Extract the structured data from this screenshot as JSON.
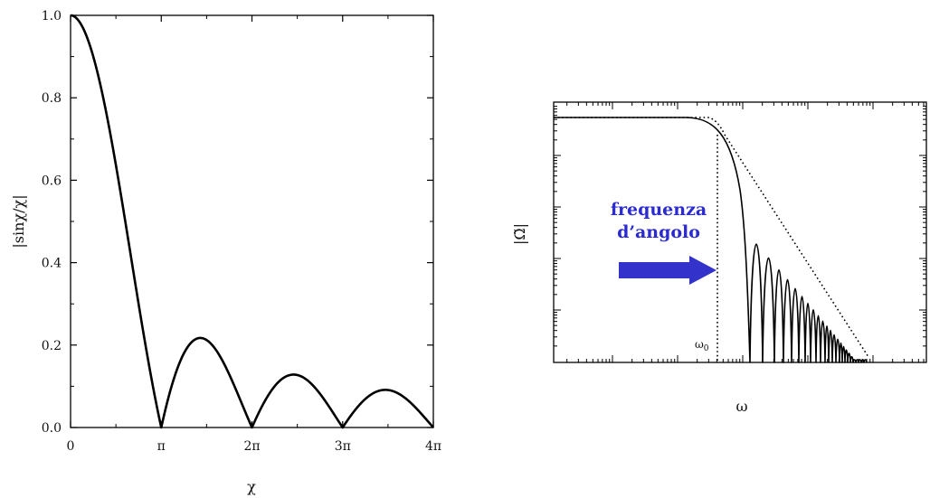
{
  "chart_data": [
    {
      "type": "line",
      "xlabel": "χ",
      "ylabel": "|sinχ/χ|",
      "xlim": [
        0,
        12.566
      ],
      "ylim": [
        0,
        1
      ],
      "x_tick_labels": [
        "0",
        "π",
        "2π",
        "3π",
        "4π"
      ],
      "x_tick_values": [
        0,
        3.1416,
        6.2832,
        9.4248,
        12.5664
      ],
      "y_tick_labels": [
        "0.0",
        "0.2",
        "0.4",
        "0.6",
        "0.8",
        "1.0"
      ],
      "y_tick_values": [
        0,
        0.2,
        0.4,
        0.6,
        0.8,
        1.0
      ],
      "grid": false,
      "series": [
        {
          "function": "|sin(x)/x|",
          "x": [
            0,
            0.5,
            1.0,
            1.5,
            2.0,
            2.5,
            3.1416,
            3.5,
            4.0,
            4.4934,
            5.0,
            5.5,
            6.2832,
            7.0,
            7.7253,
            8.5,
            9.4248,
            10.0,
            10.9041,
            11.5,
            12.5664
          ],
          "values": [
            1.0,
            0.959,
            0.841,
            0.665,
            0.455,
            0.239,
            0.0,
            0.1,
            0.189,
            0.217,
            0.192,
            0.128,
            0.0,
            0.094,
            0.128,
            0.094,
            0.0,
            0.054,
            0.091,
            0.076,
            0.0
          ]
        }
      ]
    },
    {
      "type": "line",
      "xlabel": "ω",
      "ylabel": "|Ω̃|",
      "x_scale": "log",
      "y_scale": "log",
      "grid": false,
      "corner_label": "ω",
      "corner_label_sub": "0",
      "annotation": {
        "text_lines": [
          "frequenza",
          "d’angolo"
        ],
        "arrow_color": "#3333cc"
      },
      "series": [
        {
          "style": "solid",
          "description": "|sinc| magnitude on log-log axes: flat plateau, then lobes decaying along the asymptote"
        },
        {
          "style": "dotted",
          "description": "asymptotic envelope: flat until the corner frequency ω0, then straight-line decay"
        }
      ]
    }
  ]
}
